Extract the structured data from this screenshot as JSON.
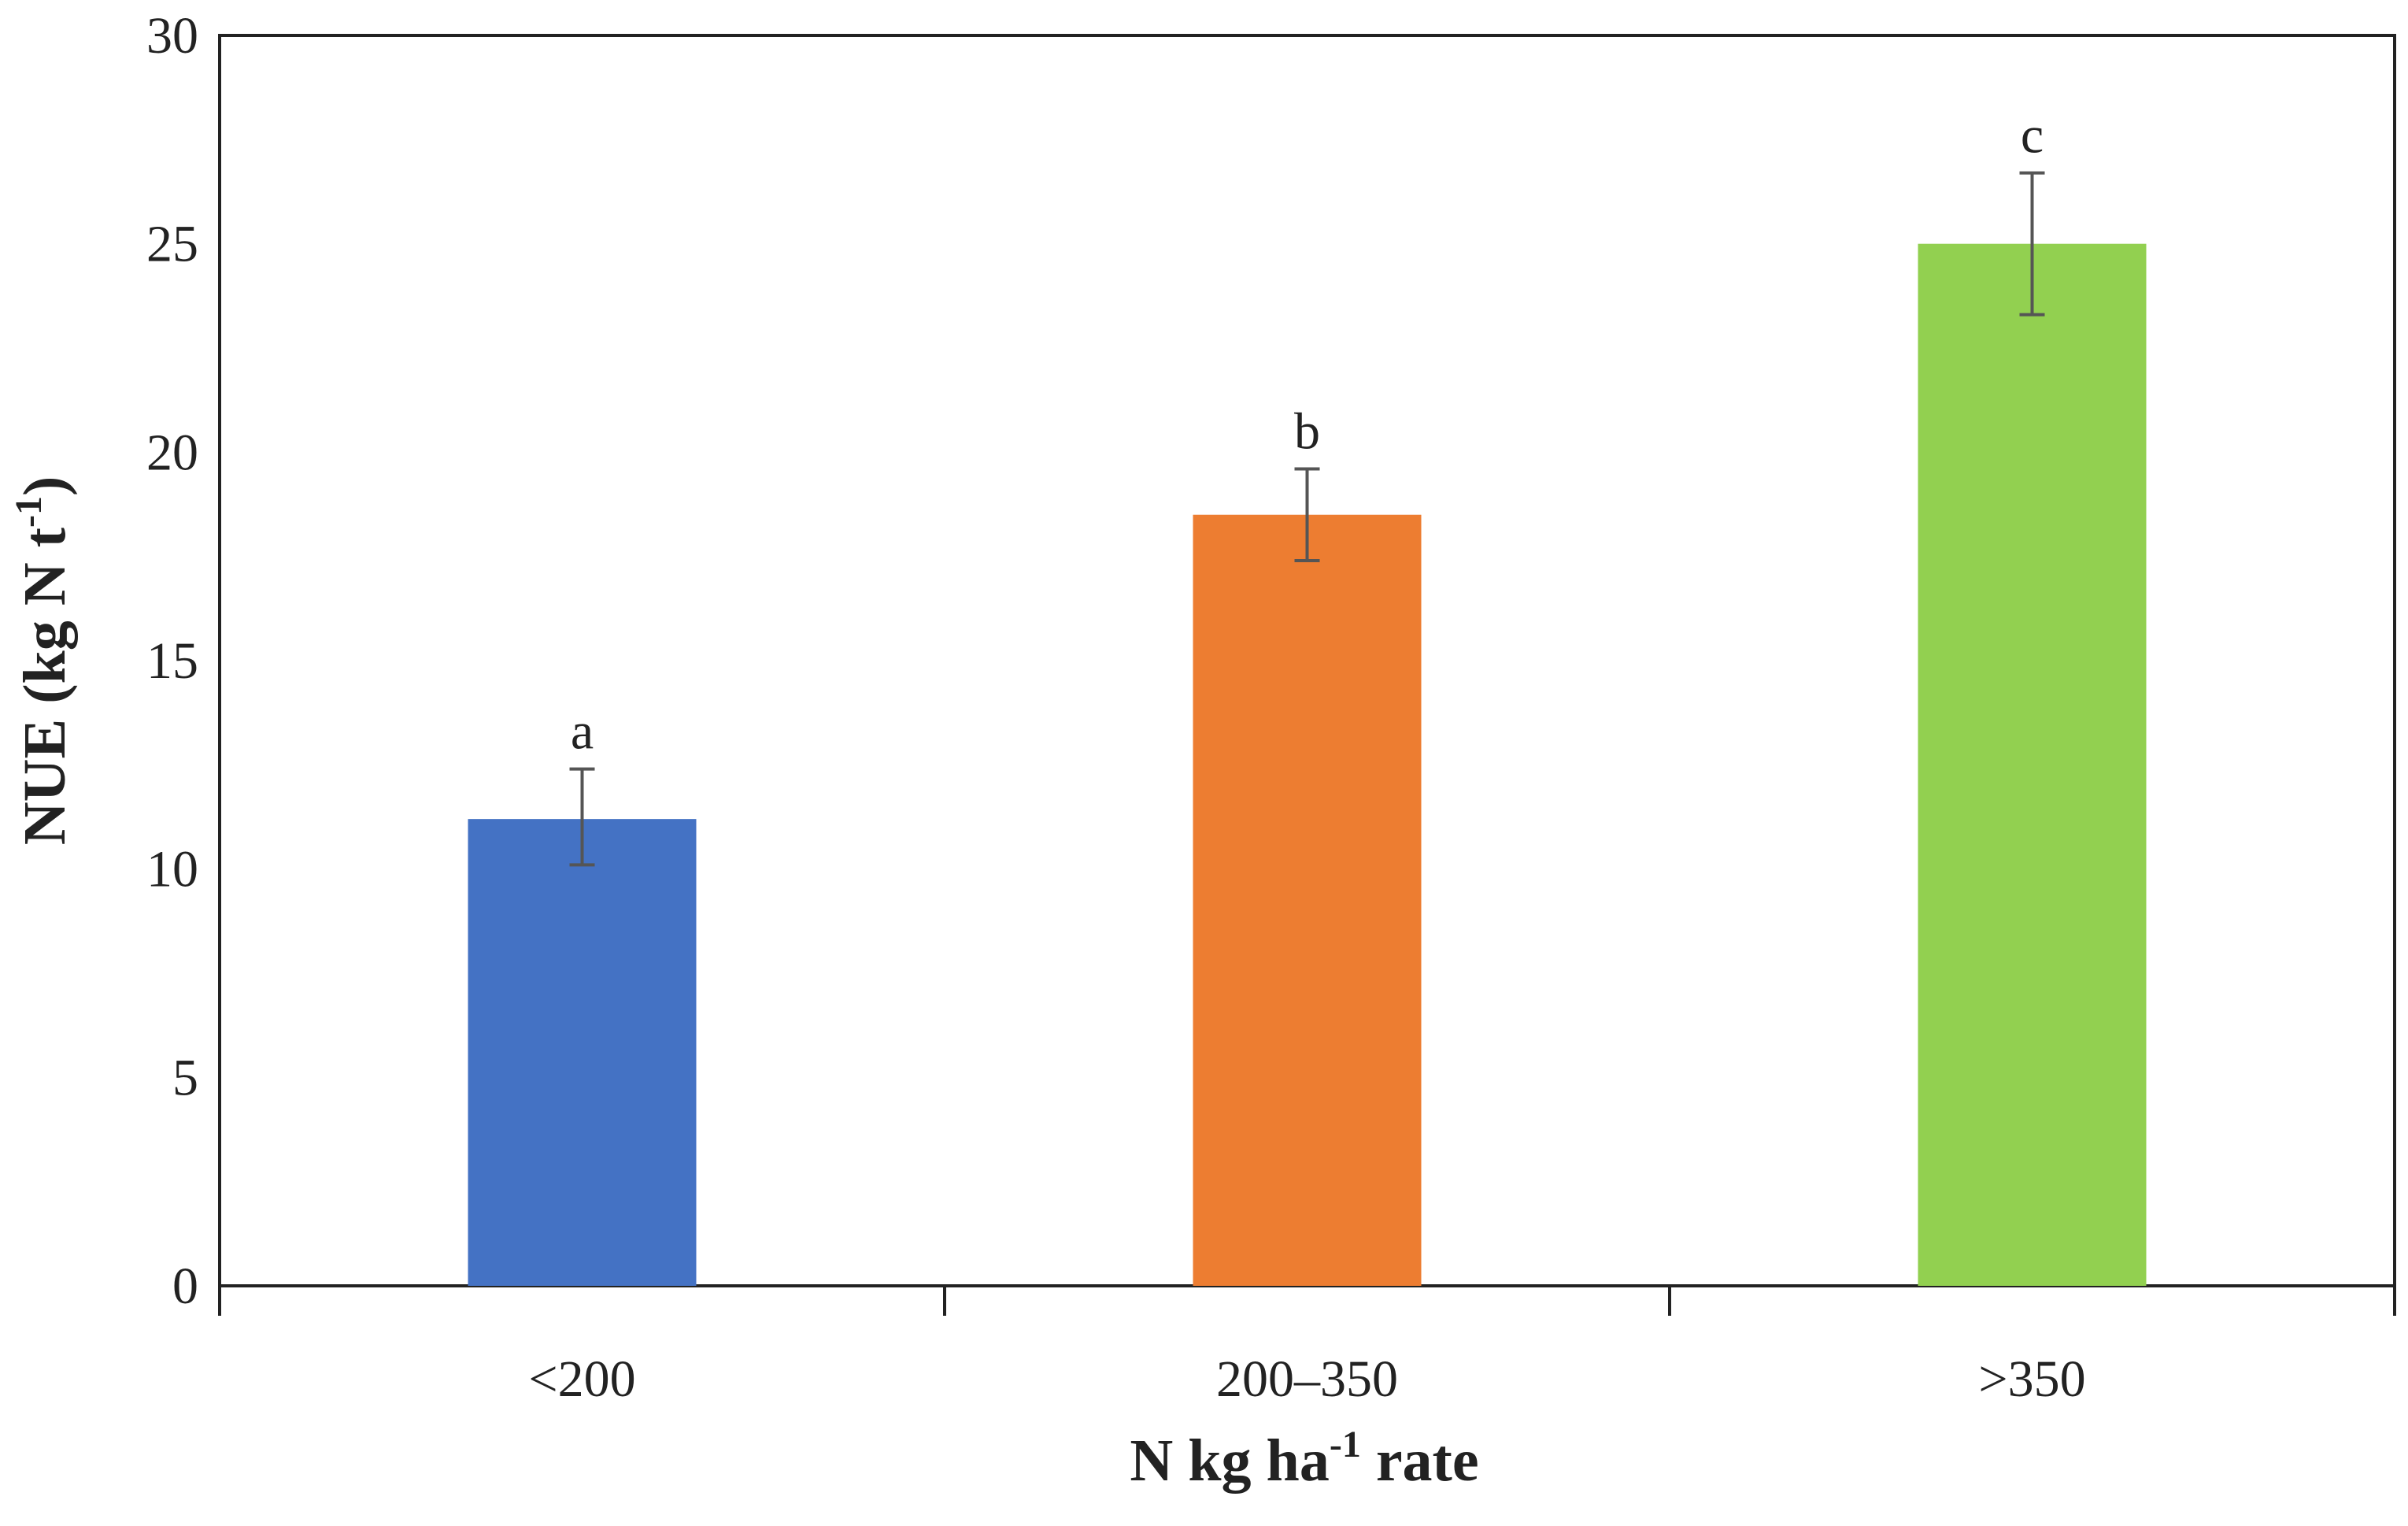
{
  "chart_data": {
    "type": "bar",
    "title": "",
    "categories": [
      "<200",
      "200–350",
      ">350"
    ],
    "values": [
      11.2,
      18.5,
      25.0
    ],
    "error_upper": [
      12.4,
      19.6,
      26.7
    ],
    "error_lower": [
      10.1,
      17.4,
      23.3
    ],
    "significance_letters": [
      "a",
      "b",
      "c"
    ],
    "colors": [
      "#4472C4",
      "#ED7D31",
      "#92D050"
    ],
    "ylim": [
      0,
      30
    ],
    "yticks": [
      0,
      5,
      10,
      15,
      20,
      25,
      30
    ],
    "ytick_labels": [
      "0",
      "5",
      "10",
      "15",
      "20",
      "25",
      "30"
    ],
    "ylabel": {
      "main": "NUE (kg N t",
      "sup": "-1",
      "end": ")"
    },
    "xlabel": {
      "main": "N kg ha",
      "sup": "-1",
      "end": " rate"
    },
    "grid": false,
    "legend": "none"
  }
}
